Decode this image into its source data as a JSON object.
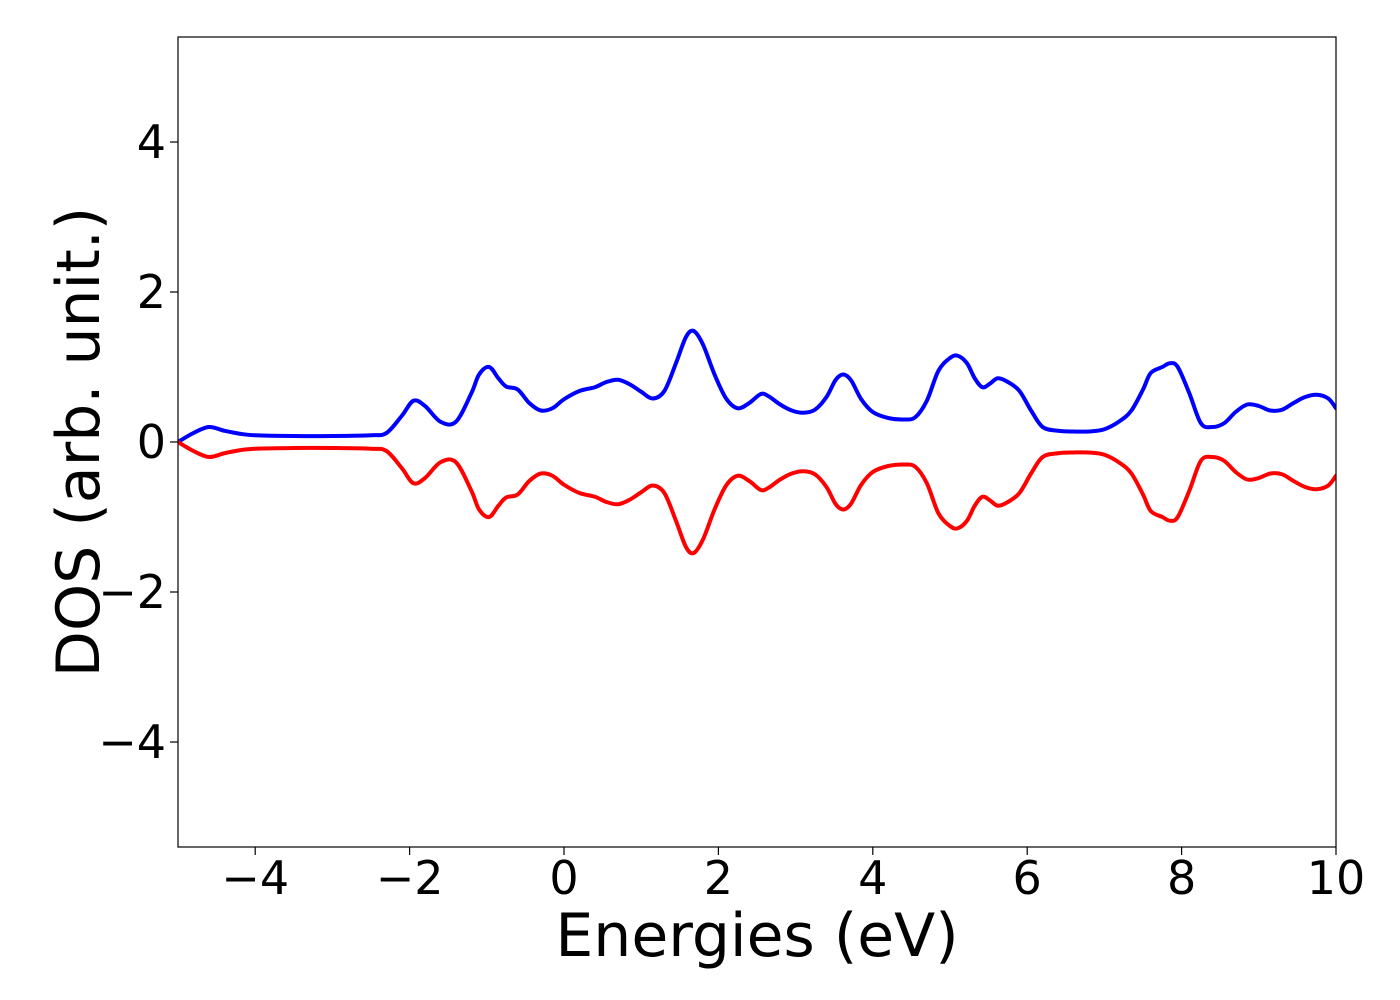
{
  "chart_data": {
    "type": "line",
    "xlabel": "Energies (eV)",
    "ylabel": "DOS (arb. unit.)",
    "xlim": [
      -5,
      10
    ],
    "ylim": [
      -5.4,
      5.4
    ],
    "xticks": [
      -4,
      -2,
      0,
      2,
      4,
      6,
      8,
      10
    ],
    "xtick_labels": [
      "−4",
      "−2",
      "0",
      "2",
      "4",
      "6",
      "8",
      "10"
    ],
    "yticks": [
      -4,
      -2,
      0,
      2,
      4
    ],
    "ytick_labels": [
      "−4",
      "−2",
      "0",
      "2",
      "4"
    ],
    "grid": false,
    "series": [
      {
        "color": "#0000ff",
        "x": [
          -5.0,
          -4.8,
          -4.6,
          -4.4,
          -4.2,
          -4.0,
          -3.5,
          -3.0,
          -2.5,
          -2.3,
          -2.1,
          -1.95,
          -1.8,
          -1.6,
          -1.4,
          -1.2,
          -1.1,
          -0.97,
          -0.85,
          -0.75,
          -0.6,
          -0.45,
          -0.3,
          -0.15,
          0.0,
          0.2,
          0.4,
          0.55,
          0.7,
          0.85,
          1.0,
          1.15,
          1.3,
          1.45,
          1.58,
          1.68,
          1.8,
          1.95,
          2.1,
          2.25,
          2.4,
          2.55,
          2.65,
          2.8,
          2.95,
          3.1,
          3.25,
          3.4,
          3.52,
          3.62,
          3.72,
          3.85,
          4.0,
          4.2,
          4.4,
          4.55,
          4.7,
          4.85,
          5.0,
          5.1,
          5.22,
          5.32,
          5.42,
          5.52,
          5.62,
          5.75,
          5.9,
          6.05,
          6.2,
          6.4,
          6.6,
          6.8,
          7.0,
          7.2,
          7.35,
          7.5,
          7.6,
          7.75,
          7.85,
          7.95,
          8.1,
          8.25,
          8.4,
          8.55,
          8.7,
          8.85,
          9.0,
          9.15,
          9.3,
          9.45,
          9.6,
          9.75,
          9.9,
          10.0
        ],
        "y": [
          0.0,
          0.12,
          0.2,
          0.15,
          0.11,
          0.09,
          0.08,
          0.08,
          0.09,
          0.12,
          0.35,
          0.55,
          0.48,
          0.27,
          0.27,
          0.65,
          0.9,
          1.0,
          0.85,
          0.74,
          0.7,
          0.52,
          0.42,
          0.45,
          0.57,
          0.68,
          0.73,
          0.8,
          0.83,
          0.77,
          0.67,
          0.58,
          0.68,
          1.05,
          1.4,
          1.48,
          1.3,
          0.9,
          0.58,
          0.45,
          0.52,
          0.64,
          0.61,
          0.5,
          0.42,
          0.39,
          0.43,
          0.6,
          0.83,
          0.9,
          0.82,
          0.57,
          0.4,
          0.32,
          0.3,
          0.33,
          0.55,
          0.95,
          1.12,
          1.15,
          1.05,
          0.85,
          0.73,
          0.78,
          0.85,
          0.8,
          0.68,
          0.42,
          0.2,
          0.15,
          0.14,
          0.14,
          0.17,
          0.28,
          0.42,
          0.7,
          0.92,
          1.0,
          1.05,
          1.0,
          0.65,
          0.25,
          0.2,
          0.25,
          0.4,
          0.5,
          0.48,
          0.42,
          0.43,
          0.52,
          0.6,
          0.63,
          0.58,
          0.45
        ]
      },
      {
        "color": "#ff0000",
        "x": [
          -5.0,
          -4.8,
          -4.6,
          -4.4,
          -4.2,
          -4.0,
          -3.5,
          -3.0,
          -2.5,
          -2.3,
          -2.1,
          -1.95,
          -1.8,
          -1.6,
          -1.4,
          -1.2,
          -1.1,
          -0.97,
          -0.85,
          -0.75,
          -0.6,
          -0.45,
          -0.3,
          -0.15,
          0.0,
          0.2,
          0.4,
          0.55,
          0.7,
          0.85,
          1.0,
          1.15,
          1.3,
          1.45,
          1.58,
          1.68,
          1.8,
          1.95,
          2.1,
          2.25,
          2.4,
          2.55,
          2.65,
          2.8,
          2.95,
          3.1,
          3.25,
          3.4,
          3.52,
          3.62,
          3.72,
          3.85,
          4.0,
          4.2,
          4.4,
          4.55,
          4.7,
          4.85,
          5.0,
          5.1,
          5.22,
          5.32,
          5.42,
          5.52,
          5.62,
          5.75,
          5.9,
          6.05,
          6.2,
          6.4,
          6.6,
          6.8,
          7.0,
          7.2,
          7.35,
          7.5,
          7.6,
          7.75,
          7.85,
          7.95,
          8.1,
          8.25,
          8.4,
          8.55,
          8.7,
          8.85,
          9.0,
          9.15,
          9.3,
          9.45,
          9.6,
          9.75,
          9.9,
          10.0
        ],
        "y": [
          0.0,
          -0.12,
          -0.2,
          -0.15,
          -0.11,
          -0.09,
          -0.08,
          -0.08,
          -0.09,
          -0.12,
          -0.35,
          -0.55,
          -0.48,
          -0.27,
          -0.27,
          -0.65,
          -0.9,
          -1.0,
          -0.85,
          -0.74,
          -0.7,
          -0.52,
          -0.42,
          -0.45,
          -0.57,
          -0.68,
          -0.73,
          -0.8,
          -0.83,
          -0.77,
          -0.67,
          -0.58,
          -0.68,
          -1.05,
          -1.4,
          -1.48,
          -1.3,
          -0.9,
          -0.58,
          -0.45,
          -0.52,
          -0.64,
          -0.61,
          -0.5,
          -0.42,
          -0.39,
          -0.43,
          -0.6,
          -0.83,
          -0.9,
          -0.82,
          -0.57,
          -0.4,
          -0.32,
          -0.3,
          -0.33,
          -0.55,
          -0.95,
          -1.12,
          -1.15,
          -1.05,
          -0.85,
          -0.73,
          -0.78,
          -0.85,
          -0.8,
          -0.68,
          -0.42,
          -0.2,
          -0.15,
          -0.14,
          -0.14,
          -0.17,
          -0.28,
          -0.42,
          -0.7,
          -0.92,
          -1.0,
          -1.05,
          -1.0,
          -0.65,
          -0.25,
          -0.2,
          -0.25,
          -0.4,
          -0.5,
          -0.48,
          -0.42,
          -0.43,
          -0.52,
          -0.6,
          -0.63,
          -0.58,
          -0.45
        ]
      }
    ]
  }
}
